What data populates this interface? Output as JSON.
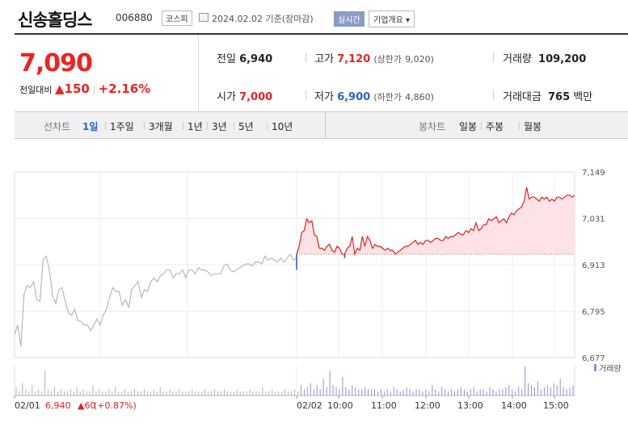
{
  "header": {
    "name": "신송홀딩스",
    "code": "006880",
    "market": "코스피",
    "date_text": "2024.02.02 기준(장마감)",
    "live_label": "실시간",
    "overview_label": "기업개요 ▾"
  },
  "quote": {
    "price": "7,090",
    "change_label": "전일대비",
    "change_value": "▲150",
    "change_sep": "|",
    "change_pct": "+2.16%",
    "prev_label": "전일",
    "prev_value": "6,940",
    "high_label": "고가",
    "high_value": "7,120",
    "upper_label": "(상한가",
    "upper_value": "9,020)",
    "volume_label": "거래량",
    "volume_value": "109,200",
    "open_label": "시가",
    "open_value": "7,000",
    "low_label": "저가",
    "low_value": "6,900",
    "lower_label": "(하한가",
    "lower_value": "4,860)",
    "amount_label": "거래대금",
    "amount_value": "765",
    "amount_unit": "백만"
  },
  "tabs": {
    "line_label": "선차트",
    "line_items": [
      "1일",
      "1주일",
      "3개월",
      "1년",
      "3년",
      "5년",
      "10년"
    ],
    "active": "1일",
    "candle_label": "봉차트",
    "candle_items": [
      "일봉",
      "주봉",
      "월봉"
    ]
  },
  "footer": {
    "prev_day": "02/01",
    "prev_close": "6,940",
    "prev_change": "▲60",
    "prev_pct": "(+0.87%)"
  },
  "colors": {
    "up": "#e22222",
    "down": "#2a62c9",
    "prev_line": "#b8b8b8",
    "volume": "#9b8ad4"
  },
  "chart_data": {
    "type": "line",
    "title": "",
    "xlabel": "",
    "ylabel": "",
    "ylim": [
      6677,
      7149
    ],
    "y_ticks": [
      "7,149",
      "7,031",
      "6,913",
      "6,795",
      "6,677"
    ],
    "x_ticks": [
      "02/01",
      "02/02",
      "10:00",
      "11:00",
      "12:00",
      "13:00",
      "14:00",
      "15:00"
    ],
    "baseline": 6940,
    "volume_label": "거래량",
    "prev_day_series": {
      "name": "02/01",
      "values": [
        6735,
        6760,
        6705,
        6840,
        6860,
        6855,
        6870,
        6825,
        6820,
        6925,
        6935,
        6900,
        6835,
        6815,
        6850,
        6855,
        6820,
        6790,
        6785,
        6800,
        6770,
        6770,
        6760,
        6760,
        6745,
        6760,
        6775,
        6760,
        6785,
        6800,
        6830,
        6855,
        6845,
        6845,
        6810,
        6825,
        6805,
        6850,
        6860,
        6870,
        6830,
        6850,
        6845,
        6870,
        6880,
        6870,
        6885,
        6890,
        6900,
        6900,
        6880,
        6890,
        6890,
        6900,
        6880,
        6900,
        6900,
        6890,
        6905,
        6900,
        6900,
        6895,
        6885,
        6890,
        6890,
        6890,
        6910,
        6915,
        6900,
        6895,
        6900,
        6905,
        6910,
        6915,
        6915,
        6910,
        6920,
        6920,
        6915,
        6935,
        6925,
        6930,
        6925,
        6920,
        6930,
        6920,
        6930,
        6940,
        6925,
        6930
      ]
    },
    "today_series": {
      "name": "02/02",
      "values": [
        6900,
        6960,
        6995,
        7000,
        7030,
        7020,
        7025,
        6990,
        6985,
        6955,
        6955,
        6950,
        6960,
        6965,
        6950,
        6945,
        6960,
        6955,
        6940,
        6930,
        6955,
        6960,
        6985,
        6940,
        6955,
        6950,
        6985,
        6960,
        6985,
        6975,
        6955,
        6965,
        6960,
        6960,
        6955,
        6950,
        6955,
        6950,
        6950,
        6940,
        6945,
        6950,
        6955,
        6960,
        6960,
        6965,
        6970,
        6975,
        6965,
        6970,
        6965,
        6975,
        6975,
        6970,
        6975,
        6980,
        6980,
        6975,
        6975,
        6985,
        6980,
        6985,
        6985,
        6990,
        6995,
        6990,
        6990,
        7000,
        6995,
        7005,
        7000,
        7020,
        7000,
        7005,
        7015,
        7015,
        7030,
        7025,
        7030,
        7035,
        7020,
        7025,
        7030,
        7020,
        7035,
        7045,
        7040,
        7050,
        7055,
        7060,
        7075,
        7110,
        7080,
        7085,
        7085,
        7080,
        7075,
        7085,
        7080,
        7085,
        7075,
        7080,
        7075,
        7085,
        7085,
        7080,
        7085,
        7090,
        7090,
        7085,
        7090
      ]
    },
    "volume_bars": [
      4,
      2,
      6,
      3,
      2,
      5,
      2,
      3,
      2,
      12,
      3,
      2,
      4,
      2,
      3,
      2,
      2,
      3,
      2,
      4,
      2,
      3,
      2,
      2,
      5,
      2,
      3,
      2,
      2,
      3,
      2,
      4,
      2,
      2,
      3,
      2,
      2,
      3,
      2,
      2,
      3,
      2,
      2,
      3,
      2,
      4,
      2,
      2,
      3,
      2,
      2,
      3,
      2,
      2,
      2,
      3,
      2,
      2,
      2,
      3,
      2,
      2,
      3,
      2,
      2,
      3,
      2,
      2,
      2,
      3,
      2,
      2,
      2,
      3,
      2,
      2,
      2,
      4,
      2,
      2,
      3,
      2,
      2,
      2,
      3,
      2,
      2,
      3,
      2,
      5,
      3,
      4,
      6,
      3,
      5,
      3,
      8,
      4,
      12,
      5,
      4,
      3,
      9,
      4,
      3,
      5,
      4,
      3,
      3,
      4,
      3,
      3,
      3,
      2,
      3,
      2,
      3,
      2,
      4,
      3,
      2,
      3,
      4,
      3,
      2,
      3,
      3,
      2,
      3,
      2,
      5,
      3,
      2,
      4,
      3,
      2,
      3,
      2,
      3,
      4,
      3,
      2,
      3,
      4,
      2,
      3,
      3,
      2,
      4,
      3,
      2,
      3,
      3,
      4,
      5,
      3,
      2,
      4,
      3,
      14,
      6,
      5,
      4,
      7,
      3,
      4,
      5,
      4,
      6,
      5,
      8,
      4,
      3,
      4,
      5
    ]
  }
}
